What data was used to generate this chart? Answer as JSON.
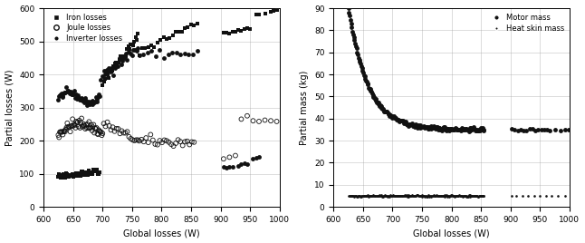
{
  "figsize": [
    6.46,
    2.68
  ],
  "dpi": 100,
  "background_color": "#ffffff",
  "marker_color": "#111111",
  "grid_color": "#999999",
  "fig6": {
    "xlabel": "Global losses (W)",
    "ylabel": "Partial losses (W)",
    "xlim": [
      600,
      1000
    ],
    "ylim": [
      0,
      600
    ],
    "xticks": [
      600,
      650,
      700,
      750,
      800,
      850,
      900,
      950,
      1000
    ],
    "yticks": [
      0,
      100,
      200,
      300,
      400,
      500,
      600
    ],
    "legend": [
      "Iron losses",
      "Joule losses",
      "Inverter losses"
    ]
  },
  "fig7": {
    "xlabel": "Global losses (W)",
    "ylabel": "Partial mass (kg)",
    "xlim": [
      600,
      1000
    ],
    "ylim": [
      0,
      90
    ],
    "xticks": [
      600,
      650,
      700,
      750,
      800,
      850,
      900,
      950,
      1000
    ],
    "yticks": [
      0,
      10,
      20,
      30,
      40,
      50,
      60,
      70,
      80,
      90
    ],
    "legend": [
      "Motor mass",
      "Heat skin mass"
    ]
  }
}
